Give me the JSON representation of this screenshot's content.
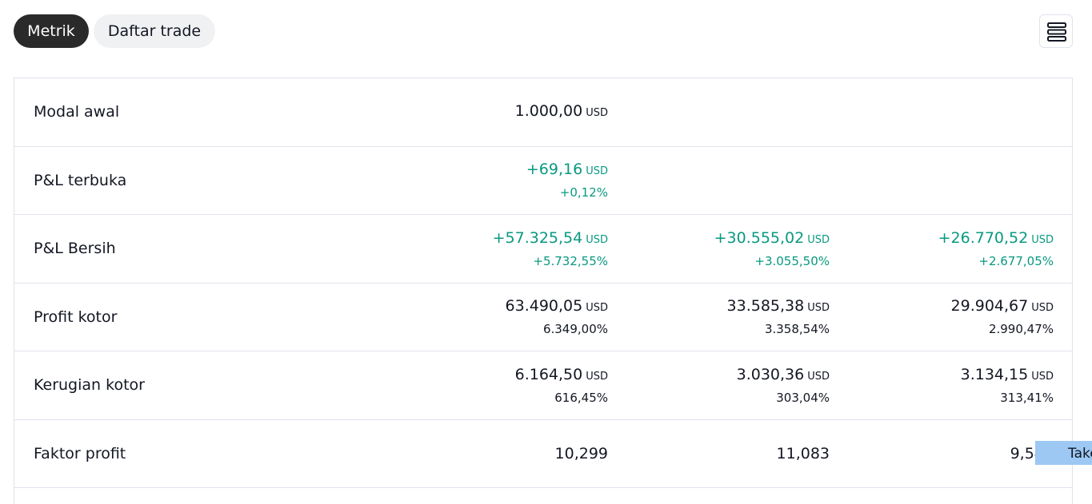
{
  "tabs": {
    "metrik": "Metrik",
    "daftar_trade": "Daftar trade"
  },
  "currency": "USD",
  "rows": [
    {
      "label": "Modal awal",
      "c1": {
        "value": "1.000,00",
        "pct": ""
      },
      "c2": {
        "value": "",
        "pct": ""
      },
      "c3": {
        "value": "",
        "pct": ""
      }
    },
    {
      "label": "P&L terbuka",
      "c1": {
        "value": "+69,16",
        "pct": "+0,12%"
      },
      "c2": {
        "value": "",
        "pct": ""
      },
      "c3": {
        "value": "",
        "pct": ""
      }
    },
    {
      "label": "P&L Bersih",
      "c1": {
        "value": "+57.325,54",
        "pct": "+5.732,55%"
      },
      "c2": {
        "value": "+30.555,02",
        "pct": "+3.055,50%"
      },
      "c3": {
        "value": "+26.770,52",
        "pct": "+2.677,05%"
      }
    },
    {
      "label": "Profit kotor",
      "c1": {
        "value": "63.490,05",
        "pct": "6.349,00%"
      },
      "c2": {
        "value": "33.585,38",
        "pct": "3.358,54%"
      },
      "c3": {
        "value": "29.904,67",
        "pct": "2.990,47%"
      }
    },
    {
      "label": "Kerugian kotor",
      "c1": {
        "value": "6.164,50",
        "pct": "616,45%"
      },
      "c2": {
        "value": "3.030,36",
        "pct": "303,04%"
      },
      "c3": {
        "value": "3.134,15",
        "pct": "313,41%"
      }
    },
    {
      "label": "Faktor profit",
      "c1": {
        "value": "10,299",
        "pct": ""
      },
      "c2": {
        "value": "11,083",
        "pct": ""
      },
      "c3": {
        "value": "9,542",
        "pct": ""
      }
    }
  ],
  "tooltip_text": "Take",
  "colors": {
    "positive": "#089981",
    "tab_active_bg": "#2a2a2a",
    "tooltip_bg": "#9cc8f3"
  },
  "icons": {
    "menu": "menu-icon"
  }
}
